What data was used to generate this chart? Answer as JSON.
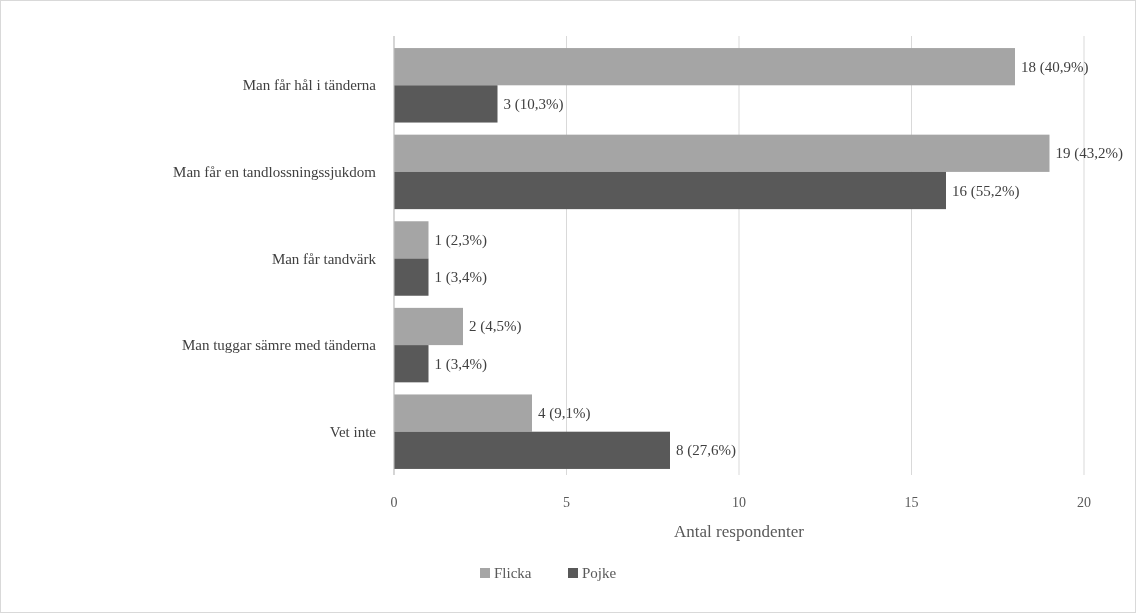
{
  "chart_data": {
    "type": "bar",
    "orientation": "horizontal",
    "categories": [
      "Man får hål i tänderna",
      "Man får en tandlossningssjukdom",
      "Man får tandvärk",
      "Man tuggar sämre med tänderna",
      "Vet inte"
    ],
    "series": [
      {
        "name": "Flicka",
        "color": "#a5a5a5",
        "values": [
          18,
          19,
          1,
          2,
          4
        ],
        "value_labels": [
          "18 (40,9%)",
          "19 (43,2%)",
          "1 (2,3%)",
          "2 (4,5%)",
          "4 (9,1%)"
        ]
      },
      {
        "name": "Pojke",
        "color": "#595959",
        "values": [
          3,
          16,
          1,
          1,
          8
        ],
        "value_labels": [
          "3 (10,3%)",
          "16 (55,2%)",
          "1 (3,4%)",
          "1 (3,4%)",
          "8 (27,6%)"
        ]
      }
    ],
    "xlabel": "Antal respondenter",
    "xlim": [
      0,
      20
    ],
    "xticks": [
      0,
      5,
      10,
      15,
      20
    ],
    "grid": "x",
    "legend": "bottom"
  }
}
